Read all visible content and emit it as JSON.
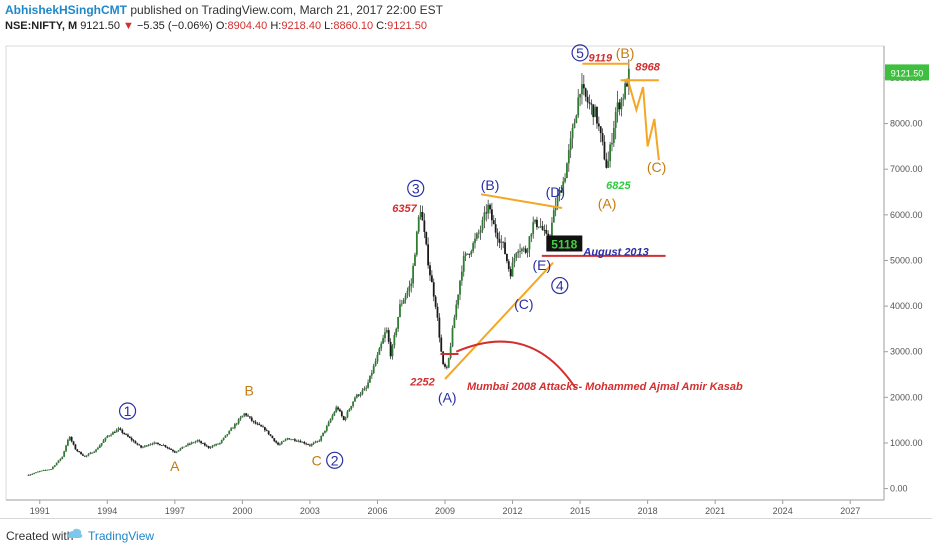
{
  "header": {
    "author": "AbhishekHSinghCMT",
    "published": "published on TradingView.com, March 21, 2017 22:00 EST",
    "symbol": "NSE:NIFTY, M",
    "last": "9121.50",
    "change": "−5.35 (−0.06%)",
    "o_label": "O:",
    "o_value": "8904.40",
    "h_label": "H:",
    "h_value": "9218.40",
    "l_label": "L:",
    "l_value": "8860.10",
    "c_label": "C:",
    "c_value": "9121.50"
  },
  "footer": {
    "created_with": "Created with",
    "brand": "TradingView"
  },
  "chart_data": {
    "type": "candlestick",
    "symbol": "NSE:NIFTY",
    "interval": "Monthly",
    "x_tick_labels": [
      "1991",
      "1994",
      "1997",
      "2000",
      "2003",
      "2006",
      "2009",
      "2012",
      "2015",
      "2018",
      "2021",
      "2024",
      "2027"
    ],
    "y_tick_labels": [
      "0.00",
      "1000.00",
      "2000.00",
      "3000.00",
      "4000.00",
      "5000.00",
      "6000.00",
      "7000.00",
      "8000.00",
      "9000.00"
    ],
    "xlim": [
      1989.5,
      2028.5
    ],
    "ylim": [
      -250,
      9700
    ],
    "last_price_label": "9121.50",
    "last_price": 9121.5,
    "price_path": [
      [
        1990.5,
        300
      ],
      [
        1991.0,
        380
      ],
      [
        1991.5,
        430
      ],
      [
        1992.0,
        700
      ],
      [
        1992.3,
        1150
      ],
      [
        1992.6,
        850
      ],
      [
        1993.0,
        700
      ],
      [
        1993.5,
        850
      ],
      [
        1994.0,
        1150
      ],
      [
        1994.5,
        1300
      ],
      [
        1995.0,
        1100
      ],
      [
        1995.5,
        900
      ],
      [
        1996.0,
        1000
      ],
      [
        1996.5,
        950
      ],
      [
        1997.0,
        800
      ],
      [
        1997.5,
        950
      ],
      [
        1998.0,
        1050
      ],
      [
        1998.5,
        900
      ],
      [
        1999.0,
        1000
      ],
      [
        1999.5,
        1300
      ],
      [
        2000.1,
        1650
      ],
      [
        2000.5,
        1450
      ],
      [
        2001.0,
        1300
      ],
      [
        2001.6,
        950
      ],
      [
        2002.0,
        1100
      ],
      [
        2002.5,
        1050
      ],
      [
        2003.0,
        950
      ],
      [
        2003.4,
        1050
      ],
      [
        2003.8,
        1400
      ],
      [
        2004.2,
        1800
      ],
      [
        2004.5,
        1500
      ],
      [
        2005.0,
        2000
      ],
      [
        2005.5,
        2200
      ],
      [
        2006.0,
        2900
      ],
      [
        2006.4,
        3500
      ],
      [
        2006.6,
        2900
      ],
      [
        2007.0,
        4000
      ],
      [
        2007.5,
        4500
      ],
      [
        2007.9,
        6200
      ],
      [
        2008.3,
        4800
      ],
      [
        2008.6,
        4000
      ],
      [
        2008.9,
        2700
      ],
      [
        2009.1,
        2600
      ],
      [
        2009.4,
        3700
      ],
      [
        2009.8,
        5000
      ],
      [
        2010.2,
        5300
      ],
      [
        2010.6,
        5700
      ],
      [
        2010.9,
        6200
      ],
      [
        2011.2,
        5700
      ],
      [
        2011.6,
        5300
      ],
      [
        2011.9,
        4700
      ],
      [
        2012.2,
        5300
      ],
      [
        2012.6,
        5200
      ],
      [
        2012.9,
        5800
      ],
      [
        2013.2,
        5800
      ],
      [
        2013.6,
        5400
      ],
      [
        2013.9,
        6200
      ],
      [
        2014.3,
        6800
      ],
      [
        2014.7,
        7900
      ],
      [
        2015.0,
        8800
      ],
      [
        2015.3,
        8500
      ],
      [
        2015.7,
        8200
      ],
      [
        2016.0,
        7500
      ],
      [
        2016.2,
        7000
      ],
      [
        2016.6,
        8300
      ],
      [
        2016.9,
        8600
      ],
      [
        2017.2,
        9121.5
      ]
    ],
    "annotations": {
      "waves": [
        {
          "label": "1",
          "x": 1994.9,
          "y": 1700,
          "circled": true,
          "color": "#2b2fa3"
        },
        {
          "label": "2",
          "x": 2004.1,
          "y": 620,
          "circled": true,
          "color": "#2b2fa3"
        },
        {
          "label": "3",
          "x": 2007.7,
          "y": 6580,
          "circled": true,
          "color": "#2b2fa3"
        },
        {
          "label": "4",
          "x": 2014.1,
          "y": 4450,
          "circled": true,
          "color": "#2b2fa3"
        },
        {
          "label": "5",
          "x": 2015.0,
          "y": 9550,
          "circled": true,
          "color": "#2b2fa3"
        },
        {
          "label": "(A)",
          "x": 2009.1,
          "y": 2000,
          "color": "#2b2fa3"
        },
        {
          "label": "(B)",
          "x": 2011.0,
          "y": 6650,
          "color": "#2b2fa3"
        },
        {
          "label": "(C)",
          "x": 2012.5,
          "y": 4050,
          "color": "#2b2fa3"
        },
        {
          "label": "(D)",
          "x": 2013.9,
          "y": 6500,
          "color": "#2b2fa3"
        },
        {
          "label": "(E)",
          "x": 2013.3,
          "y": 4900,
          "color": "#2b2fa3"
        },
        {
          "label": "A",
          "x": 1997.0,
          "y": 500,
          "color": "#c67a12"
        },
        {
          "label": "B",
          "x": 2000.3,
          "y": 2150,
          "color": "#c67a12"
        },
        {
          "label": "C",
          "x": 2003.3,
          "y": 620,
          "color": "#c67a12"
        },
        {
          "label": "(A)",
          "x": 2016.2,
          "y": 6250,
          "color": "#c67a12"
        },
        {
          "label": "(B)",
          "x": 2017.0,
          "y": 9550,
          "color": "#c67a12"
        },
        {
          "label": "(C)",
          "x": 2018.4,
          "y": 7050,
          "color": "#c67a12"
        }
      ],
      "price_labels": [
        {
          "text": "6357",
          "x": 2007.2,
          "y": 6150,
          "color": "#d32f2f"
        },
        {
          "text": "2252",
          "x": 2008.0,
          "y": 2350,
          "color": "#d32f2f"
        },
        {
          "text": "9119",
          "x": 2015.9,
          "y": 9450,
          "color": "#d32f2f"
        },
        {
          "text": "8968",
          "x": 2018.0,
          "y": 9250,
          "color": "#d32f2f"
        },
        {
          "text": "6825",
          "x": 2016.7,
          "y": 6650,
          "color": "#2ecc40"
        }
      ],
      "boxed_label": {
        "text": "5118",
        "x": 2014.3,
        "y": 5350
      },
      "notes": [
        {
          "text": "August 2013",
          "x": 2016.6,
          "y": 5200,
          "color": "#2b2fa3"
        },
        {
          "text": "Mumbai 2008 Attacks- Mohammed Ajmal Amir Kasab",
          "x": 2016.1,
          "y": 2250,
          "color": "#d32f2f"
        }
      ],
      "colors": {
        "elliott_primary": "#2b2fa3",
        "elliott_secondary": "#c67a12",
        "price_marker": "#d32f2f",
        "trendline": "#f5a623",
        "candle_up": "#2e7d32",
        "last_price_badge": "#3fbf3f"
      }
    }
  }
}
